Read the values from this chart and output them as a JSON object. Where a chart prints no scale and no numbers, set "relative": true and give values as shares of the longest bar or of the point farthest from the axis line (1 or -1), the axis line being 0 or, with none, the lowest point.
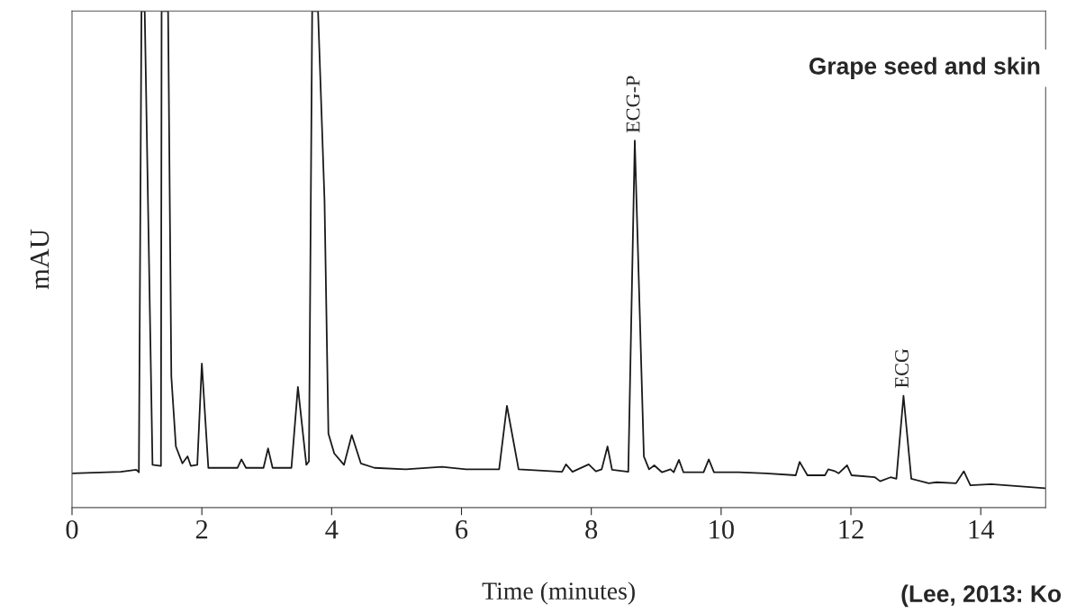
{
  "chart_data": {
    "type": "line",
    "title": "Grape seed and skin",
    "xlabel": "Time (minutes)",
    "ylabel": "mAU",
    "relative": true,
    "xlim": [
      0,
      15
    ],
    "xticks": [
      0,
      2,
      4,
      6,
      8,
      10,
      12,
      14
    ],
    "grid": false,
    "legend": false,
    "marker": "none",
    "line_style": "solid",
    "annotations": [
      {
        "text": "ECG-P",
        "x": 8.67,
        "y": 0.739
      },
      {
        "text": "ECG",
        "x": 12.81,
        "y": 0.225
      },
      "(Lee, 2013: Ko"
    ],
    "series": [
      {
        "color": "#1a1a1a",
        "x": [
          0,
          0.75,
          0.99,
          1.03,
          1.07,
          1.12,
          1.24,
          1.37,
          1.38,
          1.48,
          1.53,
          1.6,
          1.7,
          1.78,
          1.83,
          1.93,
          2.0,
          2.1,
          2.55,
          2.61,
          2.68,
          2.95,
          3.02,
          3.09,
          3.38,
          3.48,
          3.61,
          3.65,
          3.7,
          3.79,
          3.89,
          3.95,
          4.04,
          4.19,
          4.31,
          4.45,
          4.66,
          5.14,
          5.7,
          6.07,
          6.58,
          6.7,
          6.88,
          7.55,
          7.61,
          7.71,
          7.96,
          8.07,
          8.16,
          8.25,
          8.32,
          8.57,
          8.67,
          8.81,
          8.89,
          8.97,
          9.09,
          9.22,
          9.27,
          9.35,
          9.42,
          9.73,
          9.81,
          9.89,
          10.27,
          10.69,
          11.15,
          11.21,
          11.33,
          11.6,
          11.65,
          11.74,
          11.81,
          11.94,
          12.01,
          12.37,
          12.45,
          12.61,
          12.7,
          12.81,
          12.93,
          13.2,
          13.32,
          13.62,
          13.74,
          13.84,
          14.16,
          14.99
        ],
        "values": [
          0.069,
          0.072,
          0.076,
          0.071,
          1,
          1,
          0.086,
          0.084,
          1,
          1,
          0.264,
          0.123,
          0.089,
          0.103,
          0.084,
          0.086,
          0.29,
          0.08,
          0.08,
          0.097,
          0.08,
          0.08,
          0.119,
          0.08,
          0.08,
          0.243,
          0.086,
          0.093,
          1,
          1,
          0.619,
          0.149,
          0.109,
          0.086,
          0.146,
          0.089,
          0.08,
          0.077,
          0.082,
          0.077,
          0.077,
          0.205,
          0.077,
          0.072,
          0.087,
          0.072,
          0.087,
          0.073,
          0.077,
          0.123,
          0.076,
          0.072,
          0.739,
          0.103,
          0.077,
          0.085,
          0.071,
          0.077,
          0.071,
          0.096,
          0.071,
          0.071,
          0.097,
          0.071,
          0.071,
          0.069,
          0.065,
          0.092,
          0.065,
          0.065,
          0.077,
          0.074,
          0.069,
          0.085,
          0.065,
          0.061,
          0.053,
          0.061,
          0.058,
          0.225,
          0.058,
          0.049,
          0.051,
          0.049,
          0.073,
          0.045,
          0.047,
          0.039
        ]
      }
    ]
  }
}
